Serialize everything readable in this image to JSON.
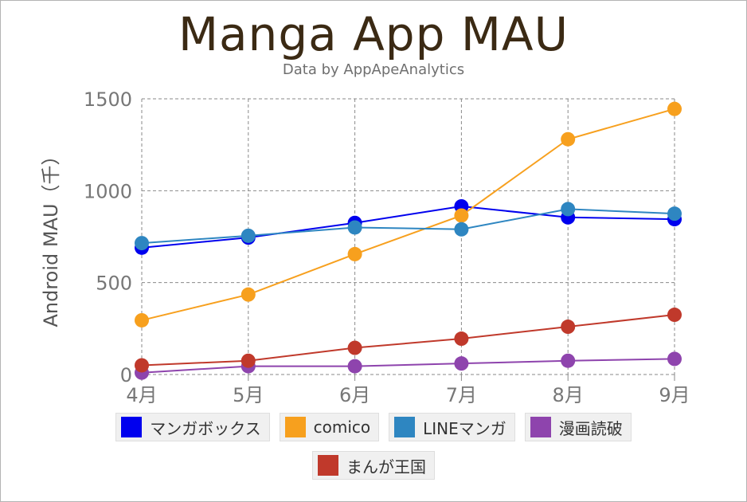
{
  "title": "Manga App MAU",
  "subtitle": "Data by AppApeAnalytics",
  "chart_data": {
    "type": "line",
    "title": "Manga App MAU",
    "subtitle": "Data by AppApeAnalytics",
    "xlabel": "",
    "ylabel": "Android MAU（千）",
    "categories": [
      "4月",
      "5月",
      "6月",
      "7月",
      "8月",
      "9月"
    ],
    "ylim": [
      0,
      1500
    ],
    "yticks": [
      0,
      500,
      1000,
      1500
    ],
    "grid": true,
    "legend": "bottom",
    "series": [
      {
        "name": "マンガボックス",
        "color": "#0000ee",
        "values": [
          690,
          745,
          825,
          915,
          855,
          845
        ]
      },
      {
        "name": "comico",
        "color": "#f7a01e",
        "values": [
          295,
          435,
          655,
          865,
          1280,
          1445
        ]
      },
      {
        "name": "LINEマンガ",
        "color": "#2e86c1",
        "values": [
          715,
          755,
          800,
          790,
          900,
          875
        ]
      },
      {
        "name": "漫画読破",
        "color": "#8e44ad",
        "values": [
          10,
          45,
          45,
          60,
          75,
          85
        ]
      },
      {
        "name": "まんが王国",
        "color": "#c0392b",
        "values": [
          50,
          75,
          145,
          195,
          260,
          325
        ]
      }
    ]
  }
}
